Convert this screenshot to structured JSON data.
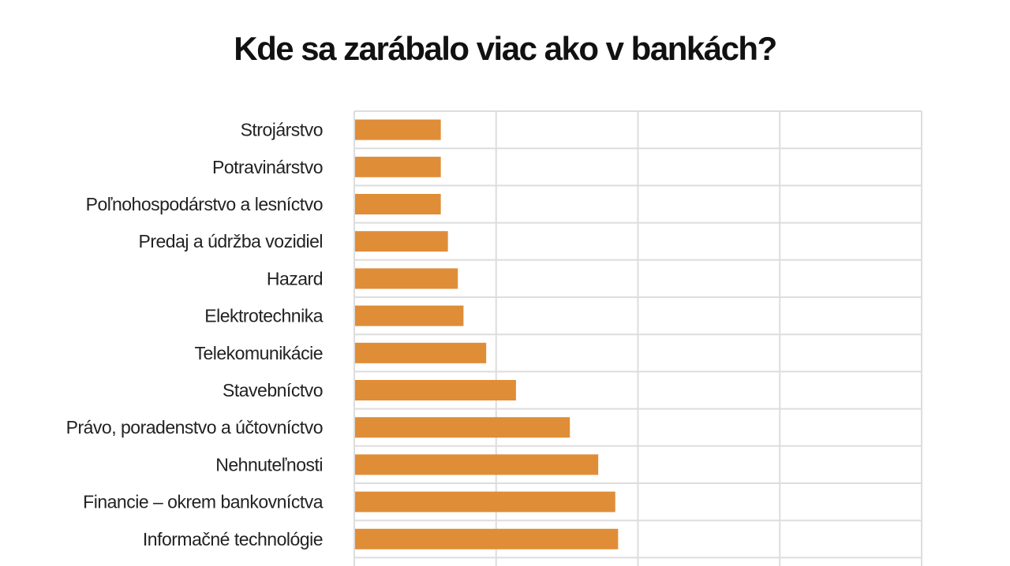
{
  "chart_data": {
    "type": "bar",
    "orientation": "horizontal",
    "title": "Kde sa zarábalo viac ako v bankách?",
    "categories": [
      "Strojárstvo",
      "Potravinárstvo",
      "Poľnohospodárstvo a lesníctvo",
      "Predaj a údržba vozidiel",
      "Hazard",
      "Elektrotechnika",
      "Telekomunikácie",
      "Stavebníctvo",
      "Právo, poradenstvo a účtovníctvo",
      "Nehnuteľnosti",
      "Financie – okrem bankovníctva",
      "Informačné technológie"
    ],
    "values": [
      6.1,
      6.1,
      6.1,
      6.6,
      7.3,
      7.7,
      9.3,
      11.4,
      15.2,
      17.2,
      18.4,
      18.6
    ],
    "xlim": [
      0,
      40
    ],
    "grid": true,
    "bar_color": "#e08d38",
    "grid_color": "#dddddd"
  }
}
